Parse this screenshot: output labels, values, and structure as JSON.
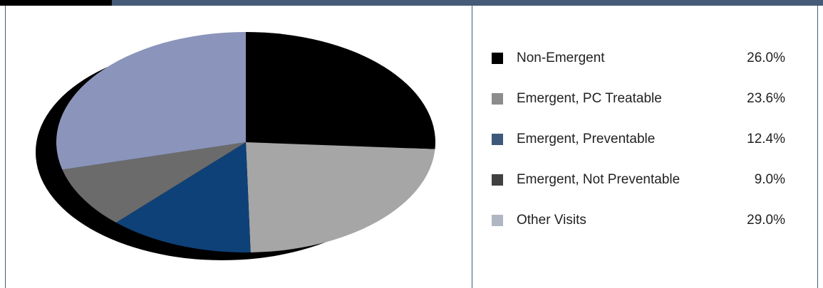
{
  "chart_data": {
    "type": "pie",
    "title": "",
    "slices": [
      {
        "label": "Non-Emergent",
        "value": 26.0,
        "display": "26.0%",
        "color": "#000000",
        "legend_color": "#000000"
      },
      {
        "label": "Emergent, PC Treatable",
        "value": 23.6,
        "display": "23.6%",
        "color": "#a6a6a6",
        "legend_color": "#8c8c8c"
      },
      {
        "label": "Emergent, Preventable",
        "value": 12.4,
        "display": "12.4%",
        "color": "#0e4178",
        "legend_color": "#3d5878"
      },
      {
        "label": "Emergent, Not Preventable",
        "value": 9.0,
        "display": "9.0%",
        "color": "#6b6b6b",
        "legend_color": "#404040"
      },
      {
        "label": "Other Visits",
        "value": 29.0,
        "display": "29.0%",
        "color": "#8b94ba",
        "legend_color": "#b0b7c2"
      }
    ],
    "legend_position": "right",
    "shadow_color": "#000000"
  },
  "colors": {
    "frame_border": "#465b78",
    "top_tab": "#000000"
  }
}
